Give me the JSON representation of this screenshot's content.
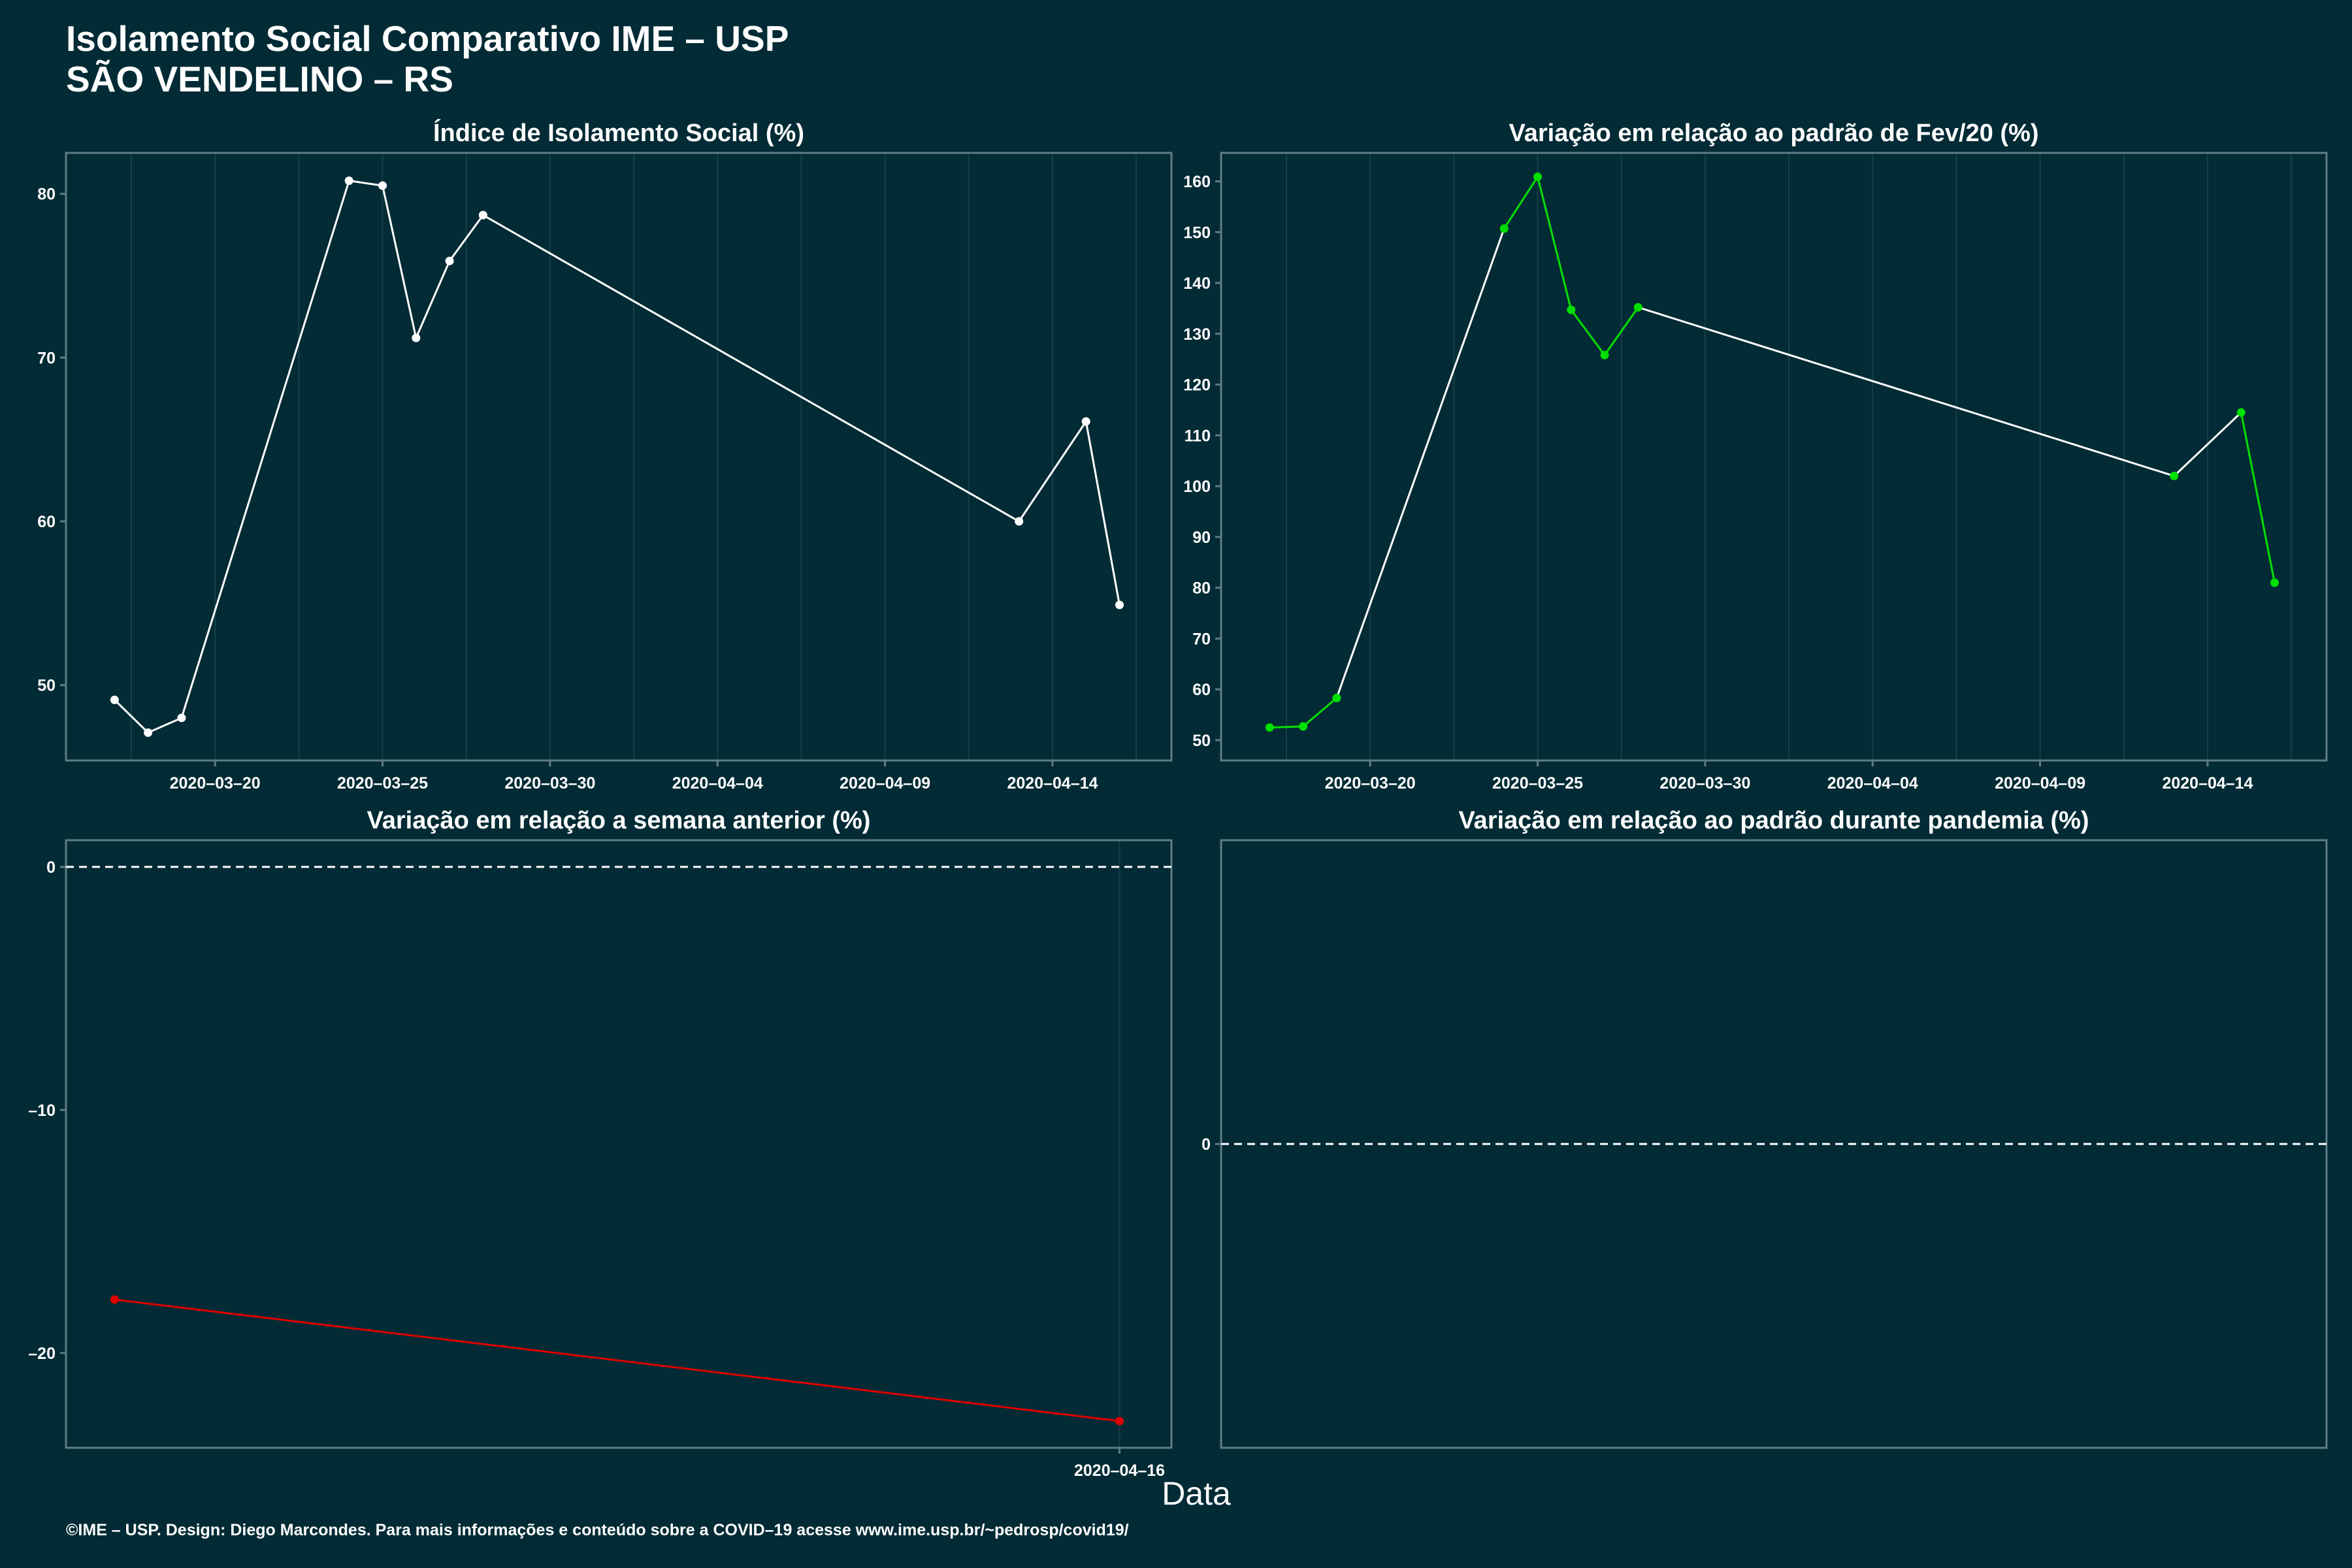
{
  "header": {
    "title_line1": "Isolamento Social Comparativo IME – USP",
    "title_line2": "SÃO VENDELINO – RS"
  },
  "footer": {
    "credit": "©IME – USP. Design: Diego Marcondes. Para mais informações e conteúdo sobre a COVID–19 acesse www.ime.usp.br/~pedrosp/covid19/"
  },
  "colors": {
    "background": "#022b35",
    "panel_border": "#5f7d84",
    "gridline": "#173f49",
    "white_series": "#ffffff",
    "green_series": "#00e000",
    "red_series": "#e00000"
  },
  "chart_data": [
    {
      "id": "isolamento",
      "type": "line",
      "title": "Índice de Isolamento Social (%)",
      "xlabel": "",
      "ylabel": "",
      "x": [
        "2020-03-17",
        "2020-03-18",
        "2020-03-19",
        "2020-03-24",
        "2020-03-25",
        "2020-03-26",
        "2020-03-27",
        "2020-03-28",
        "2020-04-13",
        "2020-04-15",
        "2020-04-16"
      ],
      "values": [
        49.1,
        47.1,
        48.0,
        80.8,
        80.5,
        71.2,
        75.9,
        78.7,
        60.0,
        66.1,
        54.9
      ],
      "xlim": [
        "2020-03-15.55",
        "2020-04-17.55"
      ],
      "ylim": [
        45.4,
        82.5
      ],
      "x_ticks": [
        "2020-03-20",
        "2020-03-25",
        "2020-03-30",
        "2020-04-04",
        "2020-04-09",
        "2020-04-14"
      ],
      "y_ticks": [
        50,
        60,
        70,
        80
      ],
      "color": "#ffffff",
      "grid": true
    },
    {
      "id": "fev20",
      "type": "line",
      "title": "Variação em relação ao padrão de Fev/20 (%)",
      "xlabel": "",
      "ylabel": "",
      "x": [
        "2020-03-17",
        "2020-03-18",
        "2020-03-19",
        "2020-03-24",
        "2020-03-25",
        "2020-03-26",
        "2020-03-27",
        "2020-03-28",
        "2020-04-13",
        "2020-04-15",
        "2020-04-16"
      ],
      "values": [
        52.5,
        52.7,
        58.3,
        150.7,
        160.9,
        134.7,
        125.8,
        135.2,
        102.0,
        114.5,
        81.0
      ],
      "xlim": [
        "2020-03-15.55",
        "2020-04-17.55"
      ],
      "ylim": [
        46.0,
        165.6
      ],
      "x_ticks": [
        "2020-03-20",
        "2020-03-25",
        "2020-03-30",
        "2020-04-04",
        "2020-04-09",
        "2020-04-14"
      ],
      "y_ticks": [
        50,
        60,
        70,
        80,
        90,
        100,
        110,
        120,
        130,
        140,
        150,
        160
      ],
      "point_color": "#00e000",
      "segment_colors": [
        "#00e000",
        "#00e000",
        "#ffffff",
        "#00e000",
        "#00e000",
        "#00e000",
        "#00e000",
        "#ffffff",
        "#ffffff",
        "#00e000"
      ],
      "grid": true
    },
    {
      "id": "semana",
      "type": "line",
      "title": "Variação em relação a semana anterior (%)",
      "xlabel": "Data",
      "ylabel": "",
      "x": [
        "2020-03-17",
        "2020-04-16"
      ],
      "values": [
        -17.8,
        -22.8
      ],
      "xlim": [
        "2020-03-15.55",
        "2020-04-17.55"
      ],
      "ylim": [
        -23.9,
        1.1
      ],
      "x_ticks": [
        "2020-04-16"
      ],
      "y_ticks": [
        -20,
        -10,
        0
      ],
      "y_tick_labels": [
        "–20",
        "–10",
        "0"
      ],
      "reference_line": 0,
      "color": "#e00000",
      "grid": true
    },
    {
      "id": "pandemia",
      "type": "line",
      "title": "Variação em relação ao padrão durante pandemia (%)",
      "xlabel": "",
      "ylabel": "",
      "x": [],
      "values": [],
      "ylim": [
        -1,
        1
      ],
      "y_ticks": [
        0
      ],
      "reference_line": 0,
      "grid": false
    }
  ]
}
